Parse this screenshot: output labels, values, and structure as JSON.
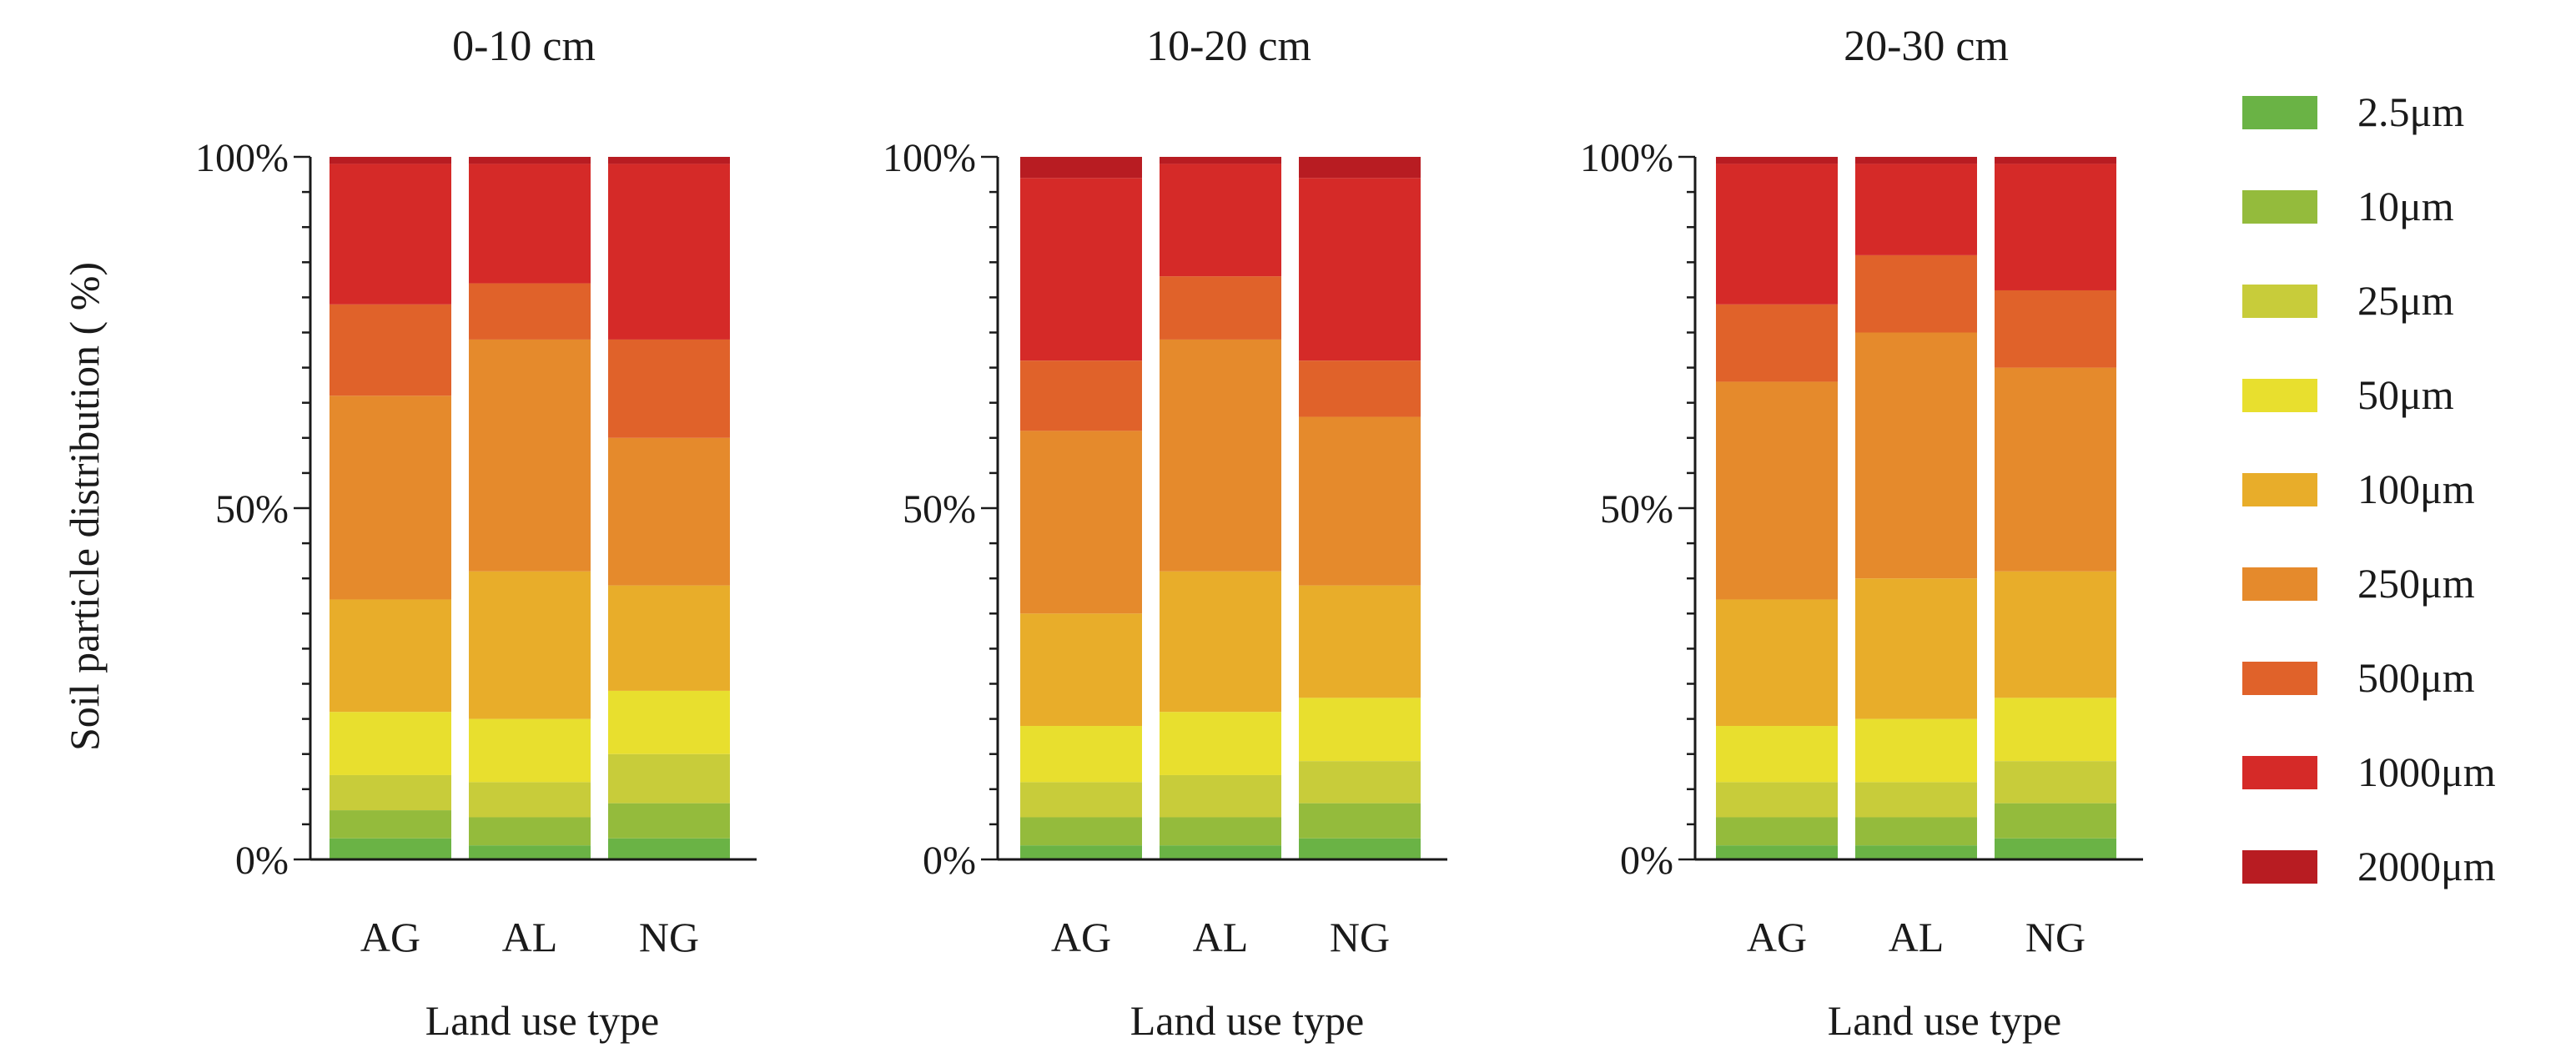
{
  "y_axis_label": "Soil particle distribution ( %)",
  "x_axis_label": "Land use type",
  "y_ticks": [
    "0%",
    "50%",
    "100%"
  ],
  "legend": {
    "items": [
      {
        "label": "2.5μm",
        "color": "#6ab345"
      },
      {
        "label": "10μm",
        "color": "#94bb3c"
      },
      {
        "label": "25μm",
        "color": "#c8cc3a"
      },
      {
        "label": "50μm",
        "color": "#e8df2e"
      },
      {
        "label": "100μm",
        "color": "#e8ad2a"
      },
      {
        "label": "250μm",
        "color": "#e58a2c"
      },
      {
        "label": "500μm",
        "color": "#e0622a"
      },
      {
        "label": "1000μm",
        "color": "#d52a28"
      },
      {
        "label": "2000μm",
        "color": "#b81c22"
      }
    ]
  },
  "chart_data": [
    {
      "type": "bar",
      "stacked": true,
      "title": "0-10 cm",
      "xlabel": "Land use type",
      "ylabel": "Soil particle distribution ( %)",
      "ylim": [
        0,
        100
      ],
      "categories": [
        "AG",
        "AL",
        "NG"
      ],
      "series": [
        {
          "name": "2.5μm",
          "values": [
            3,
            2,
            3
          ]
        },
        {
          "name": "10μm",
          "values": [
            4,
            4,
            5
          ]
        },
        {
          "name": "25μm",
          "values": [
            5,
            5,
            7
          ]
        },
        {
          "name": "50μm",
          "values": [
            9,
            9,
            9
          ]
        },
        {
          "name": "100μm",
          "values": [
            16,
            21,
            15
          ]
        },
        {
          "name": "250μm",
          "values": [
            29,
            33,
            21
          ]
        },
        {
          "name": "500μm",
          "values": [
            13,
            8,
            14
          ]
        },
        {
          "name": "1000μm",
          "values": [
            20,
            17,
            25
          ]
        },
        {
          "name": "2000μm",
          "values": [
            1,
            1,
            1
          ]
        }
      ]
    },
    {
      "type": "bar",
      "stacked": true,
      "title": "10-20 cm",
      "xlabel": "Land use type",
      "ylabel": "",
      "ylim": [
        0,
        100
      ],
      "categories": [
        "AG",
        "AL",
        "NG"
      ],
      "series": [
        {
          "name": "2.5μm",
          "values": [
            2,
            2,
            3
          ]
        },
        {
          "name": "10μm",
          "values": [
            4,
            4,
            5
          ]
        },
        {
          "name": "25μm",
          "values": [
            5,
            6,
            6
          ]
        },
        {
          "name": "50μm",
          "values": [
            8,
            9,
            9
          ]
        },
        {
          "name": "100μm",
          "values": [
            16,
            20,
            16
          ]
        },
        {
          "name": "250μm",
          "values": [
            26,
            33,
            24
          ]
        },
        {
          "name": "500μm",
          "values": [
            10,
            9,
            8
          ]
        },
        {
          "name": "1000μm",
          "values": [
            26,
            16,
            26
          ]
        },
        {
          "name": "2000μm",
          "values": [
            3,
            1,
            3
          ]
        }
      ]
    },
    {
      "type": "bar",
      "stacked": true,
      "title": "20-30 cm",
      "xlabel": "Land use type",
      "ylabel": "",
      "ylim": [
        0,
        100
      ],
      "categories": [
        "AG",
        "AL",
        "NG"
      ],
      "series": [
        {
          "name": "2.5μm",
          "values": [
            2,
            2,
            3
          ]
        },
        {
          "name": "10μm",
          "values": [
            4,
            4,
            5
          ]
        },
        {
          "name": "25μm",
          "values": [
            5,
            5,
            6
          ]
        },
        {
          "name": "50μm",
          "values": [
            8,
            9,
            9
          ]
        },
        {
          "name": "100μm",
          "values": [
            18,
            20,
            18
          ]
        },
        {
          "name": "250μm",
          "values": [
            31,
            35,
            29
          ]
        },
        {
          "name": "500μm",
          "values": [
            11,
            11,
            11
          ]
        },
        {
          "name": "1000μm",
          "values": [
            20,
            13,
            18
          ]
        },
        {
          "name": "2000μm",
          "values": [
            1,
            1,
            1
          ]
        }
      ]
    }
  ]
}
